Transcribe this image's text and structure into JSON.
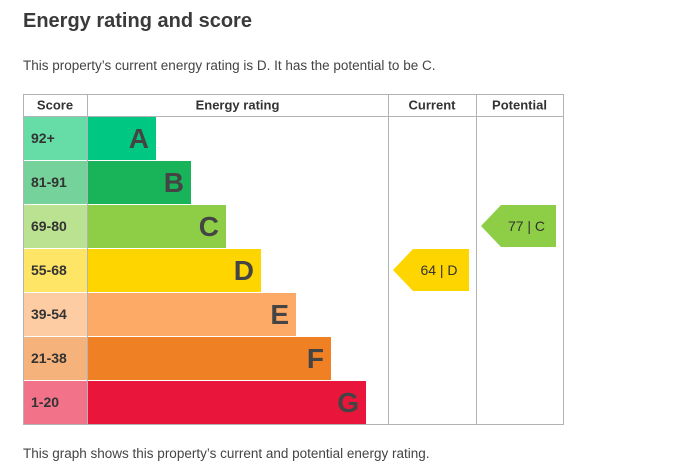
{
  "title": "Energy rating and score",
  "intro": "This property’s current energy rating is D. It has the potential to be C.",
  "footer": "This graph shows this property’s current and potential energy rating.",
  "chart_data": {
    "type": "bar",
    "headers": {
      "score": "Score",
      "rating": "Energy rating",
      "current": "Current",
      "potential": "Potential"
    },
    "bands": [
      {
        "letter": "A",
        "range": "92+",
        "bar_color": "#00c781",
        "score_bg": "#66dda7"
      },
      {
        "letter": "B",
        "range": "81-91",
        "bar_color": "#19b459",
        "score_bg": "#75d29b"
      },
      {
        "letter": "C",
        "range": "69-80",
        "bar_color": "#8dce46",
        "score_bg": "#bbe290"
      },
      {
        "letter": "D",
        "range": "55-68",
        "bar_color": "#ffd500",
        "score_bg": "#ffe566"
      },
      {
        "letter": "E",
        "range": "39-54",
        "bar_color": "#fcaa65",
        "score_bg": "#fdcca3"
      },
      {
        "letter": "F",
        "range": "21-38",
        "bar_color": "#ef8023",
        "score_bg": "#f5b37b"
      },
      {
        "letter": "G",
        "range": "1-20",
        "bar_color": "#e9153b",
        "score_bg": "#f27389"
      }
    ],
    "current": {
      "score": 64,
      "band": "D",
      "label": "64 | D"
    },
    "potential": {
      "score": 77,
      "band": "C",
      "label": "77 | C"
    }
  }
}
